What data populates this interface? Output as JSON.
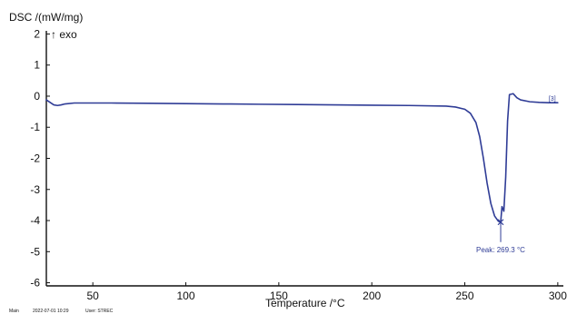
{
  "chart_data": {
    "type": "line",
    "title": "",
    "xlabel": "Temperature /°C",
    "ylabel": "DSC /(mW/mg)",
    "direction_label": "↑ exo",
    "xlim": [
      25,
      303
    ],
    "ylim": [
      -6.1,
      2.1
    ],
    "x_ticks": [
      50,
      100,
      150,
      200,
      250,
      300
    ],
    "y_ticks": [
      2,
      1,
      0,
      -1,
      -2,
      -3,
      -4,
      -5,
      -6
    ],
    "grid": false,
    "legend": "none",
    "series": [
      {
        "name": "",
        "color": "#2f3c96",
        "x": [
          25,
          27,
          29,
          31,
          33,
          35,
          40,
          50,
          60,
          80,
          100,
          120,
          140,
          160,
          180,
          200,
          220,
          240,
          245,
          250,
          253,
          256,
          258,
          260,
          262,
          264,
          266,
          268,
          269.3,
          270,
          271,
          272,
          273,
          274,
          276,
          278,
          280,
          285,
          290,
          295,
          300
        ],
        "y": [
          -0.12,
          -0.2,
          -0.28,
          -0.3,
          -0.28,
          -0.25,
          -0.22,
          -0.22,
          -0.22,
          -0.23,
          -0.24,
          -0.25,
          -0.26,
          -0.27,
          -0.28,
          -0.29,
          -0.3,
          -0.32,
          -0.35,
          -0.42,
          -0.55,
          -0.85,
          -1.3,
          -2.0,
          -2.8,
          -3.45,
          -3.85,
          -4.02,
          -4.05,
          -3.55,
          -3.7,
          -2.6,
          -0.8,
          0.05,
          0.08,
          -0.05,
          -0.12,
          -0.18,
          -0.2,
          -0.21,
          -0.21
        ]
      }
    ],
    "annotations": [
      {
        "text": "Peak: 269.3 °C",
        "x": 269.3,
        "y": -4.05
      }
    ],
    "curve_id_label": "[3]"
  },
  "footer": {
    "main_label": "Main",
    "timestamp": "2022-07-01 10:29",
    "user_label": "User: STREC"
  }
}
